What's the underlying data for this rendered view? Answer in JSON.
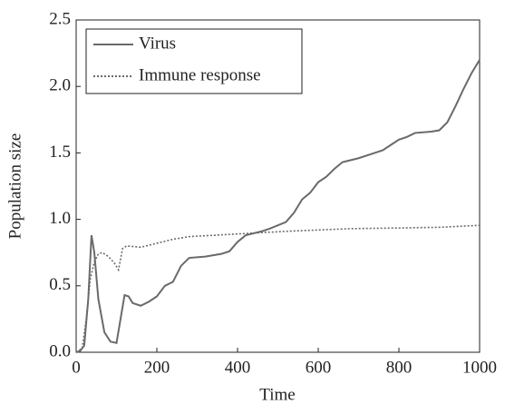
{
  "chart_data": {
    "type": "line",
    "xlabel": "Time",
    "ylabel": "Population size",
    "xlim": [
      0,
      1000
    ],
    "xticks": [
      0,
      200,
      400,
      600,
      800,
      1000
    ],
    "ylim": [
      0,
      2.5
    ],
    "yticks": [
      {
        "value": 0,
        "label": "0.0"
      },
      0.5,
      {
        "value": 1,
        "label": "1.0"
      },
      1.5,
      {
        "value": 2,
        "label": "2.0"
      },
      2.5
    ],
    "legend": "upper left",
    "series": [
      {
        "name": "Virus",
        "color": "#6a6a6a",
        "style": "solid",
        "x": [
          0,
          10,
          20,
          30,
          38,
          45,
          55,
          70,
          85,
          100,
          110,
          120,
          130,
          140,
          160,
          180,
          200,
          220,
          240,
          260,
          280,
          320,
          360,
          380,
          400,
          420,
          460,
          480,
          520,
          540,
          560,
          580,
          600,
          620,
          640,
          660,
          700,
          740,
          760,
          780,
          800,
          820,
          840,
          880,
          900,
          920,
          940,
          960,
          980,
          1000
        ],
        "values": [
          0,
          0.01,
          0.05,
          0.4,
          0.88,
          0.75,
          0.4,
          0.15,
          0.08,
          0.07,
          0.25,
          0.43,
          0.42,
          0.37,
          0.35,
          0.38,
          0.42,
          0.5,
          0.53,
          0.65,
          0.71,
          0.72,
          0.74,
          0.76,
          0.83,
          0.88,
          0.91,
          0.93,
          0.98,
          1.05,
          1.15,
          1.2,
          1.28,
          1.32,
          1.38,
          1.43,
          1.46,
          1.5,
          1.52,
          1.56,
          1.6,
          1.62,
          1.65,
          1.66,
          1.67,
          1.73,
          1.85,
          1.98,
          2.1,
          2.2
        ]
      },
      {
        "name": "Immune response",
        "color": "#6a6a6a",
        "style": "dotted",
        "x": [
          0,
          15,
          25,
          35,
          45,
          55,
          65,
          80,
          95,
          105,
          115,
          125,
          160,
          200,
          240,
          280,
          340,
          400,
          460,
          520,
          600,
          680,
          800,
          900,
          1000
        ],
        "values": [
          0,
          0.03,
          0.25,
          0.55,
          0.68,
          0.74,
          0.75,
          0.72,
          0.67,
          0.62,
          0.78,
          0.8,
          0.79,
          0.82,
          0.85,
          0.87,
          0.88,
          0.89,
          0.9,
          0.91,
          0.92,
          0.93,
          0.935,
          0.94,
          0.955
        ]
      }
    ]
  }
}
